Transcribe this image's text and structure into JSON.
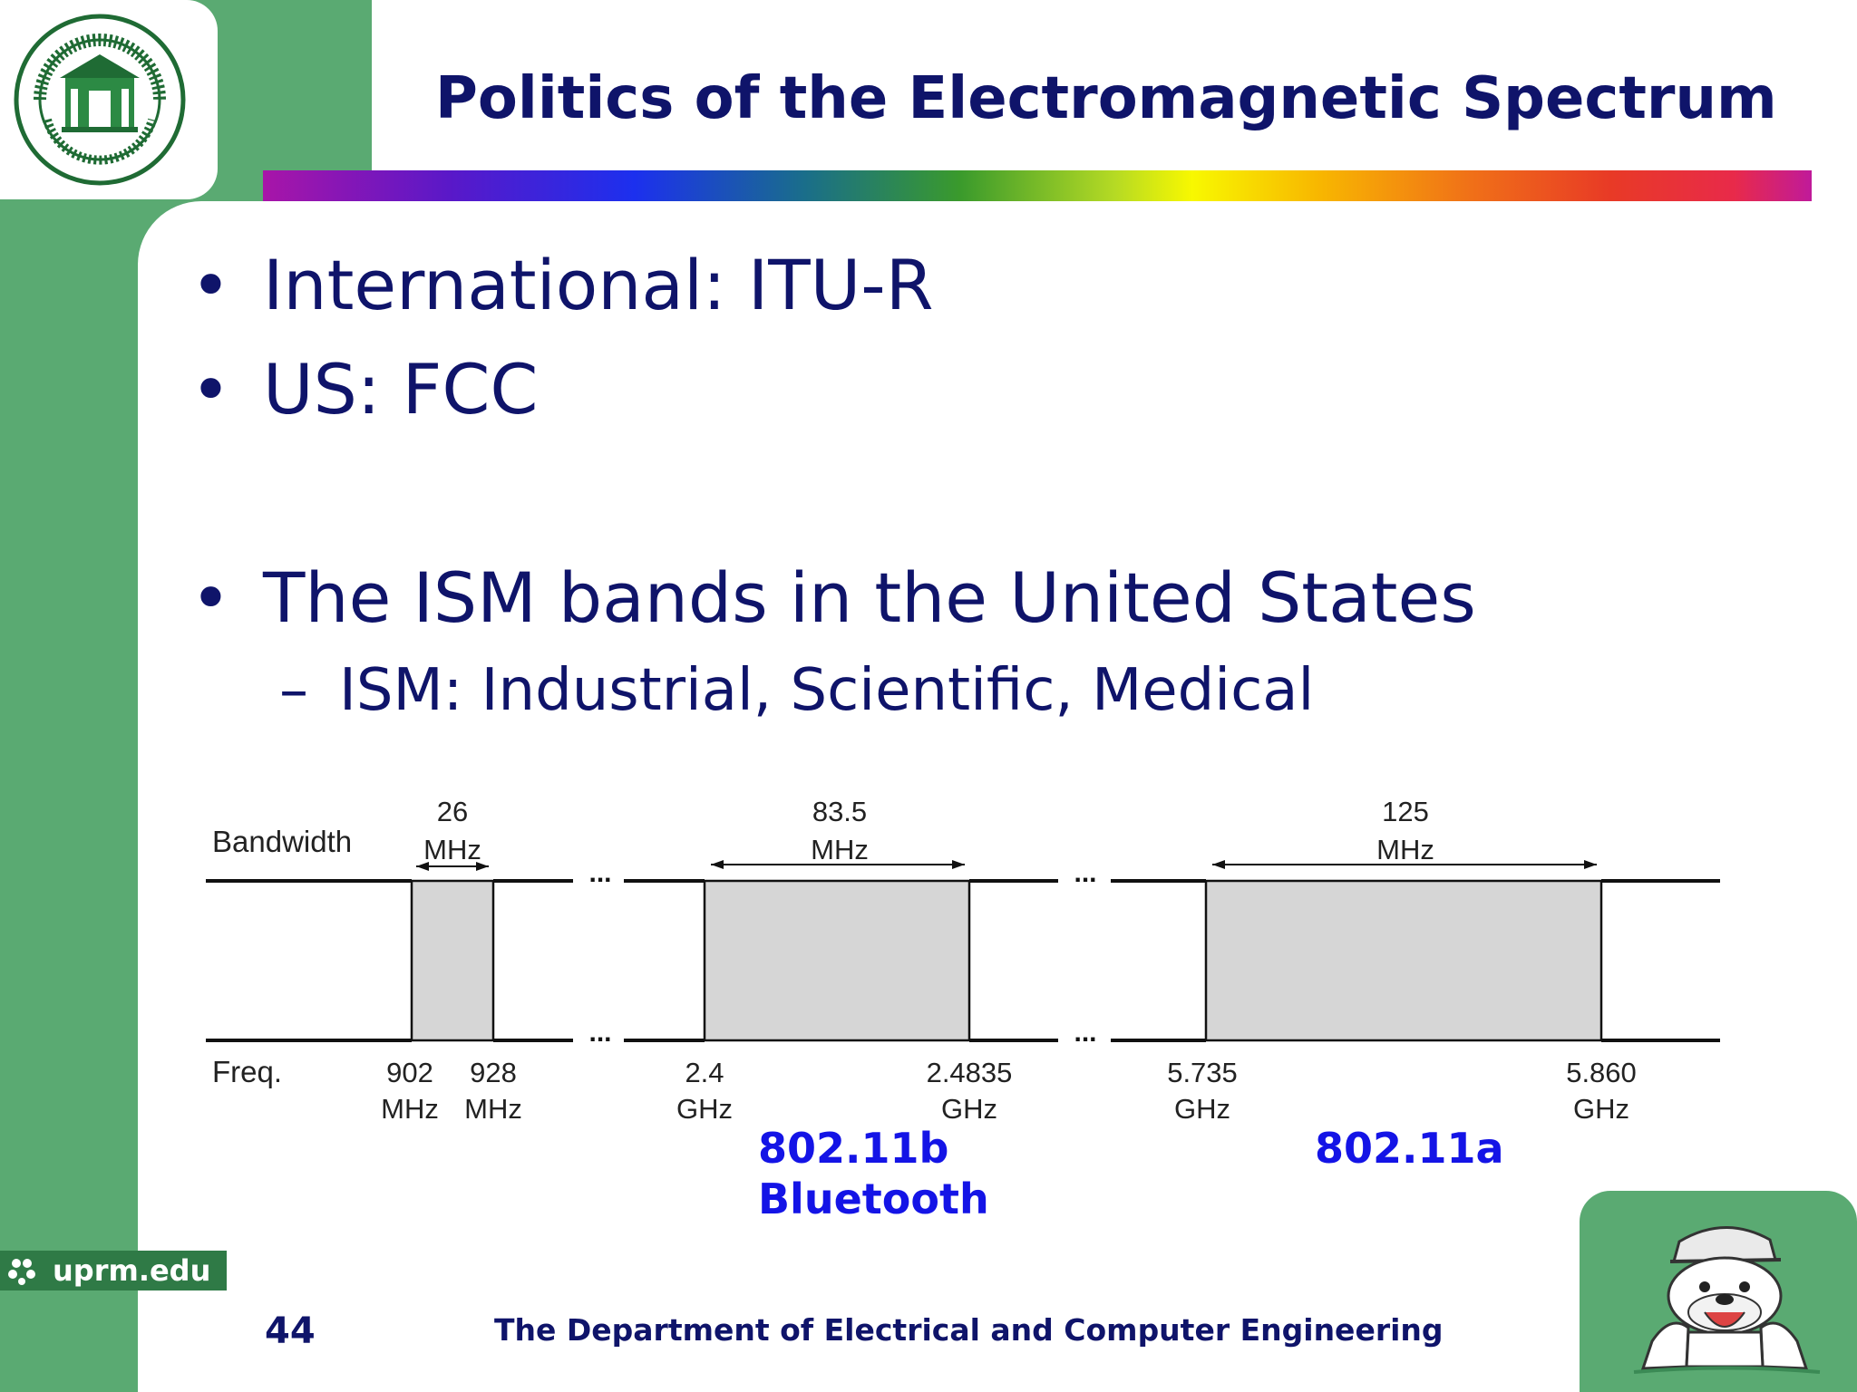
{
  "slide": {
    "title": "Politics of the Electromagnetic Spectrum",
    "bullets": [
      "International: ITU-R",
      "US: FCC",
      "The ISM bands in the United States"
    ],
    "sub_bullet": "ISM: Industrial, Scientific, Medical",
    "bullet_char": "•",
    "sub_bullet_char": "–",
    "footer": {
      "page_number": "44",
      "department": "The Department of Electrical and Computer Engineering",
      "site": "uprm.edu"
    },
    "colors": {
      "title": "#0f146a",
      "side_bar": "#5aaa72",
      "label_blue": "#1414e6"
    }
  },
  "diagram": {
    "row_labels": {
      "bandwidth": "Bandwidth",
      "freq": "Freq."
    },
    "ellipsis": "...",
    "bands": [
      {
        "bandwidth_value": "26",
        "bandwidth_unit": "MHz",
        "low_value": "902",
        "low_unit": "MHz",
        "high_value": "928",
        "high_unit": "MHz"
      },
      {
        "bandwidth_value": "83.5",
        "bandwidth_unit": "MHz",
        "low_value": "2.4",
        "low_unit": "GHz",
        "high_value": "2.4835",
        "high_unit": "GHz"
      },
      {
        "bandwidth_value": "125",
        "bandwidth_unit": "MHz",
        "low_value": "5.735",
        "low_unit": "GHz",
        "high_value": "5.860",
        "high_unit": "GHz"
      }
    ],
    "labels": {
      "b_standard": "802.11b",
      "bluetooth": "Bluetooth",
      "a_standard": "802.11a"
    }
  },
  "icons": {
    "seal": "university-seal-icon",
    "mascot": "bulldog-mascot-icon",
    "site": "flower-icon"
  }
}
